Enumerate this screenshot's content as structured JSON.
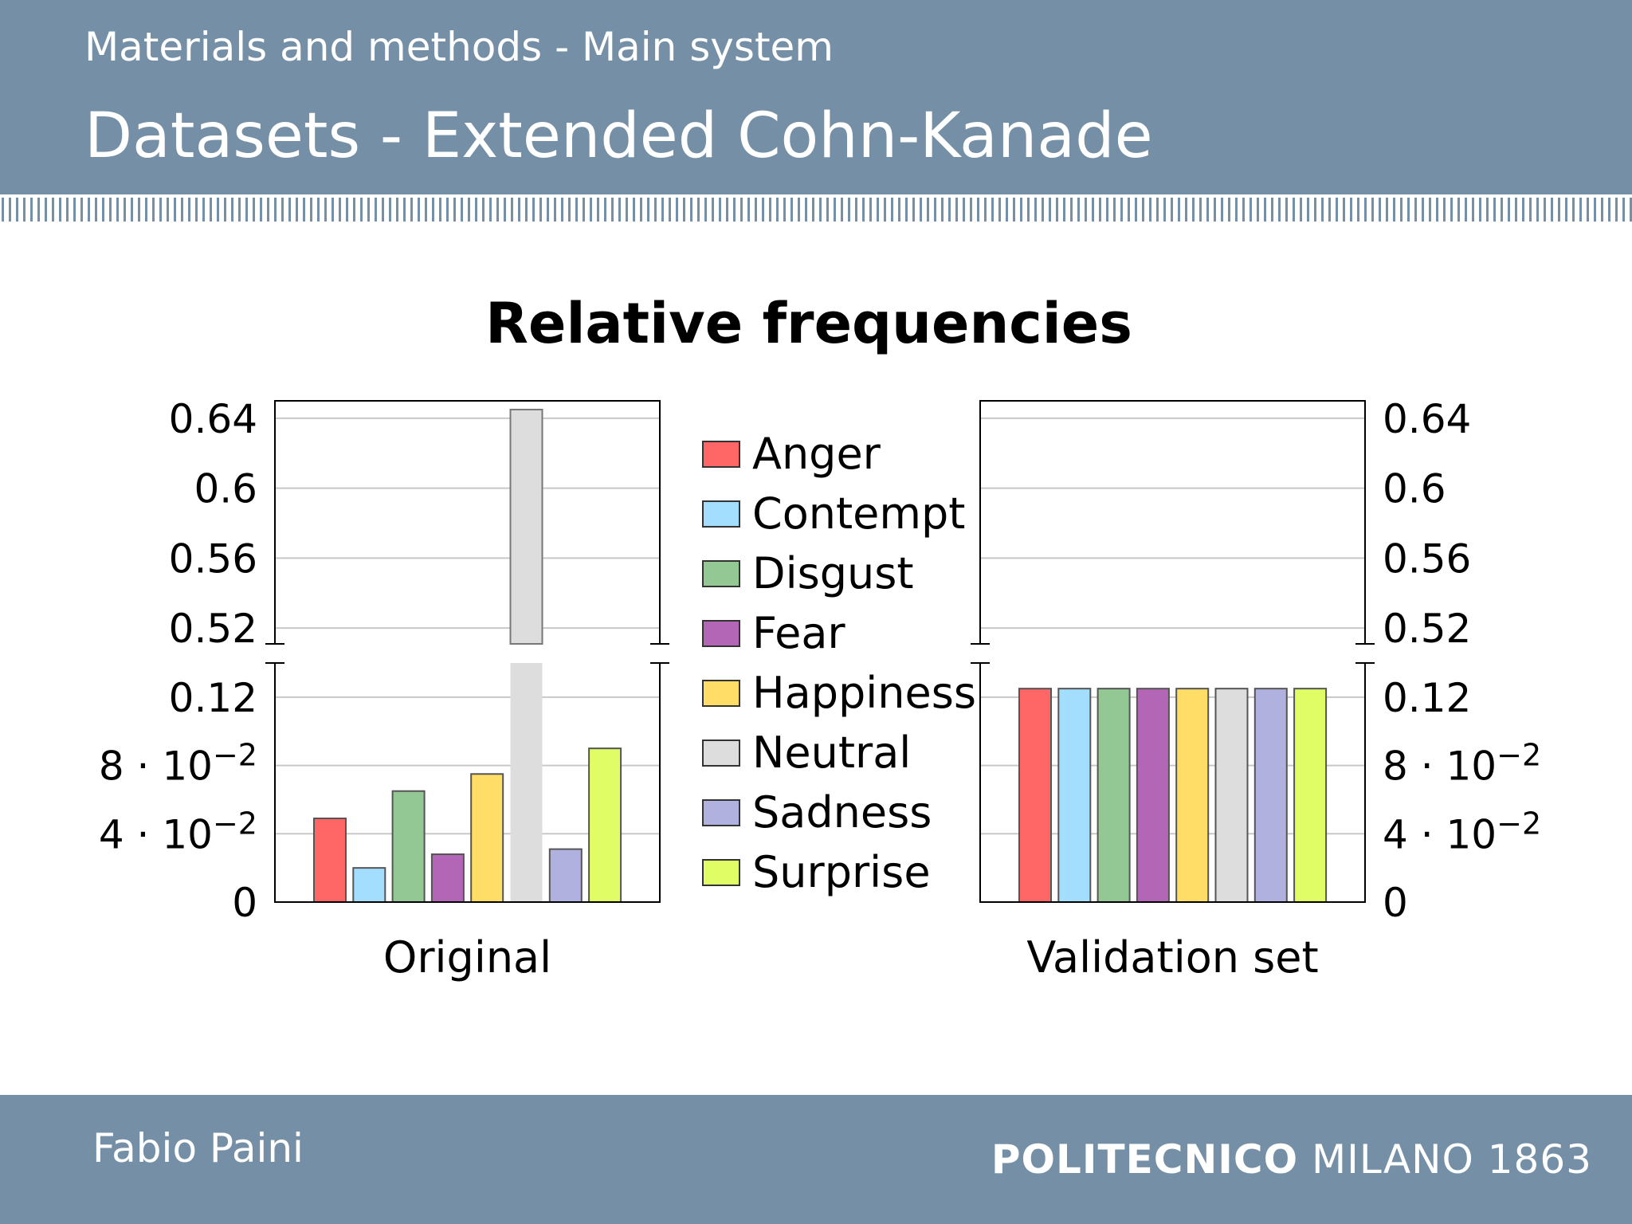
{
  "header": {
    "subtitle": "Materials and methods - Main system",
    "title": "Datasets - Extended Cohn-Kanade"
  },
  "footer": {
    "author": "Fabio Paini",
    "institution_bold": "POLITECNICO",
    "institution_rest": "MILANO 1863"
  },
  "colors": {
    "band": "#7590a6",
    "Anger": "#ff6666",
    "Contempt": "#a3defe",
    "Disgust": "#93c794",
    "Fear": "#b366b5",
    "Happiness": "#ffdd66",
    "Neutral": "#dddddd",
    "Sadness": "#b1b1e0",
    "Surprise": "#e1fd66"
  },
  "chart_data": {
    "type": "bar",
    "title": "Relative frequencies",
    "legend_position": "center",
    "categories": [
      "Anger",
      "Contempt",
      "Disgust",
      "Fear",
      "Happiness",
      "Neutral",
      "Sadness",
      "Surprise"
    ],
    "panels": [
      {
        "xlabel": "Original",
        "values": [
          0.049,
          0.02,
          0.065,
          0.028,
          0.075,
          0.645,
          0.031,
          0.09
        ],
        "y_axis_side": "left"
      },
      {
        "xlabel": "Validation set",
        "values": [
          0.125,
          0.125,
          0.125,
          0.125,
          0.125,
          0.125,
          0.125,
          0.125
        ],
        "y_axis_side": "right"
      }
    ],
    "y_axis_break": true,
    "ylim_lower": [
      0,
      0.14
    ],
    "ylim_upper": [
      0.51,
      0.65
    ],
    "yticks_lower": [
      {
        "value": 0,
        "mantissa": "0",
        "exp": ""
      },
      {
        "value": 0.04,
        "mantissa": "4 · 10",
        "exp": "−2"
      },
      {
        "value": 0.08,
        "mantissa": "8 · 10",
        "exp": "−2"
      },
      {
        "value": 0.12,
        "mantissa": "0.12",
        "exp": ""
      }
    ],
    "yticks_upper": [
      {
        "value": 0.52,
        "mantissa": "0.52",
        "exp": ""
      },
      {
        "value": 0.56,
        "mantissa": "0.56",
        "exp": ""
      },
      {
        "value": 0.6,
        "mantissa": "0.6",
        "exp": ""
      },
      {
        "value": 0.64,
        "mantissa": "0.64",
        "exp": ""
      }
    ],
    "grid": true
  }
}
